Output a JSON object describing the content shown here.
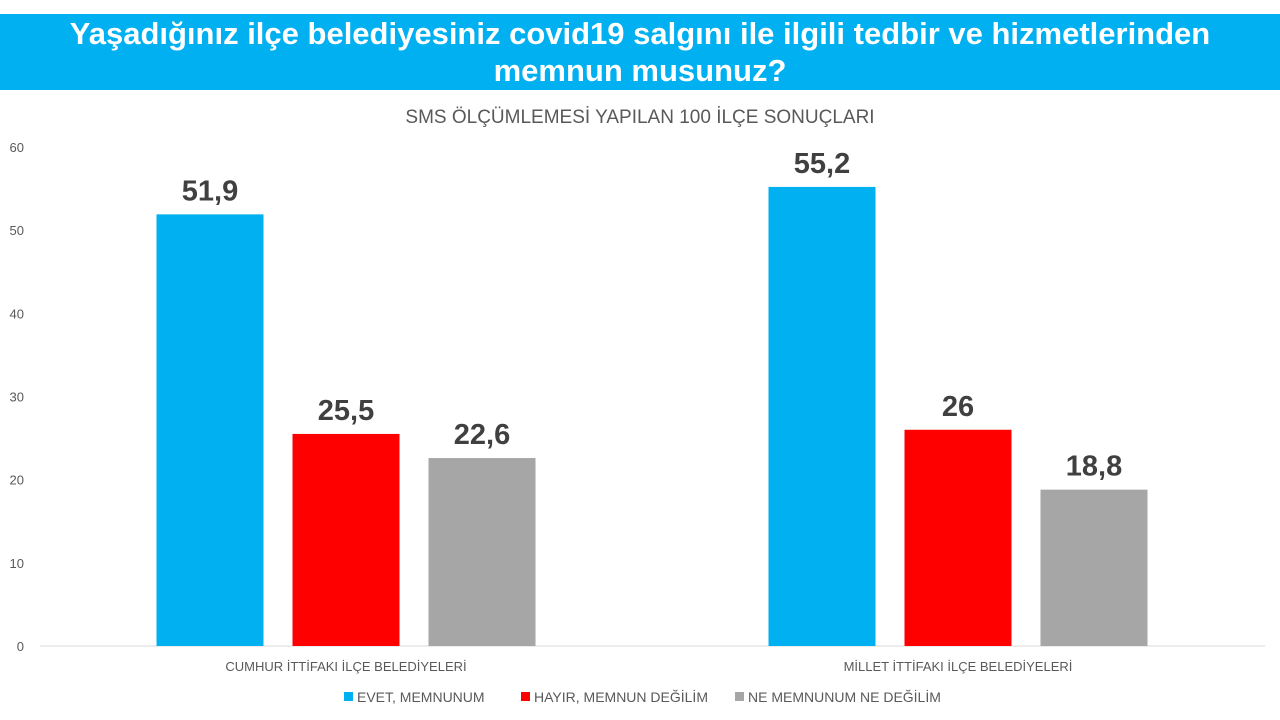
{
  "header": {
    "title": "Yaşadığınız ilçe belediyesiniz covid19 salgını ile ilgili tedbir ve hizmetlerinden memnun musunuz?"
  },
  "chart_data": {
    "type": "bar",
    "title": "SMS ÖLÇÜMLEMESİ YAPILAN 100 İLÇE SONUÇLARI",
    "categories": [
      "CUMHUR İTTİFAKI İLÇE BELEDİYELERİ",
      "MİLLET İTTİFAKI İLÇE BELEDİYELERİ"
    ],
    "series": [
      {
        "name": "EVET, MEMNUNUM",
        "values": [
          51.9,
          55.2
        ],
        "labels": [
          "51,9",
          "55,2"
        ],
        "color": "#00b0f0"
      },
      {
        "name": "HAYIR, MEMNUN DEĞİLİM",
        "values": [
          25.5,
          26
        ],
        "labels": [
          "25,5",
          "26"
        ],
        "color": "#ff0000"
      },
      {
        "name": "NE MEMNUNUM NE DEĞİLİM",
        "values": [
          22.6,
          18.8
        ],
        "labels": [
          "22,6",
          "18,8"
        ],
        "color": "#a6a6a6"
      }
    ],
    "yticks": [
      "0",
      "10",
      "20",
      "30",
      "40",
      "50",
      "60"
    ],
    "ylim": [
      0,
      60
    ],
    "grid": false,
    "legend": "bottom"
  }
}
